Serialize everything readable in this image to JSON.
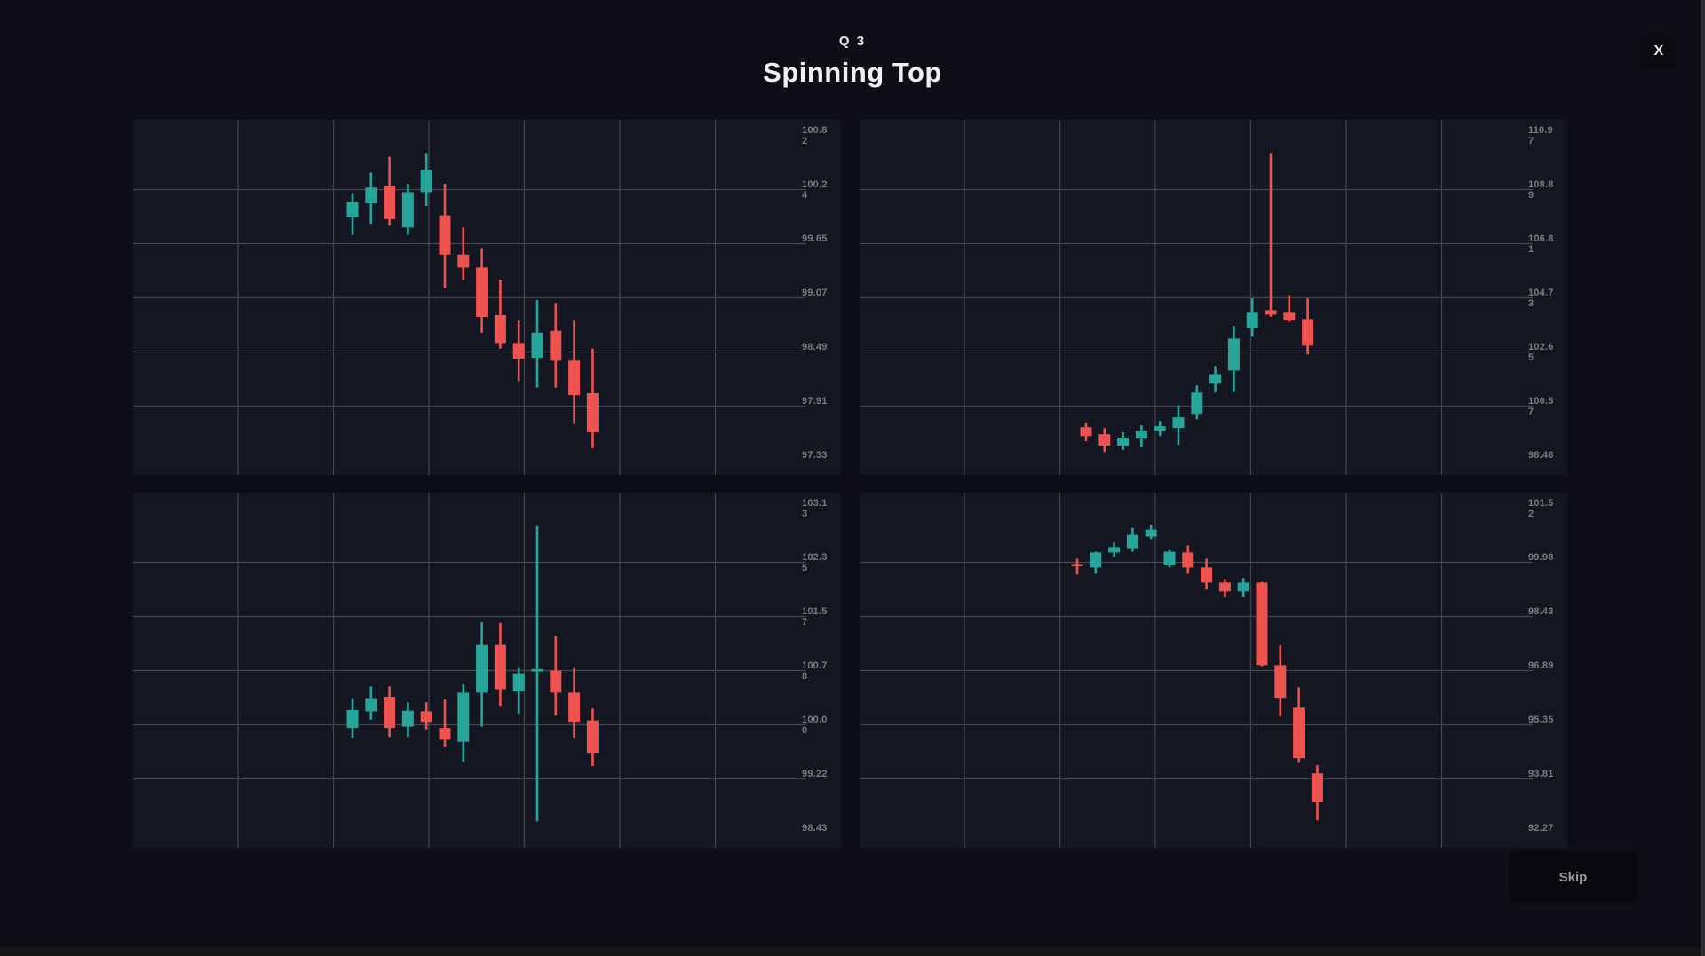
{
  "header": {
    "question_label": "Q 3",
    "title": "Spinning Top",
    "close_label": "X"
  },
  "footer": {
    "skip_label": "Skip"
  },
  "theme": {
    "page_bg": "#0d0e16",
    "panel_bg": "#141722",
    "grid_color": "#42464f",
    "axis_text_color": "#787b86",
    "up_color": "#26a69a",
    "down_color": "#ef5350",
    "title_color": "#eef0f4"
  },
  "chart_data": [
    {
      "type": "candlestick",
      "name": "chart-top-left",
      "axis_labels": [
        "100.82",
        "100.24",
        "99.65",
        "99.07",
        "98.49",
        "97.91",
        "97.33"
      ],
      "axis_values": [
        100.82,
        100.24,
        99.65,
        99.07,
        98.49,
        97.91,
        97.33
      ],
      "grid": true,
      "legend_position": "none",
      "candles": [
        {
          "o": 99.94,
          "h": 100.2,
          "l": 99.75,
          "c": 100.1
        },
        {
          "o": 100.09,
          "h": 100.42,
          "l": 99.87,
          "c": 100.26
        },
        {
          "o": 100.28,
          "h": 100.59,
          "l": 99.85,
          "c": 99.92
        },
        {
          "o": 99.83,
          "h": 100.3,
          "l": 99.75,
          "c": 100.21
        },
        {
          "o": 100.21,
          "h": 100.63,
          "l": 100.06,
          "c": 100.45
        },
        {
          "o": 99.96,
          "h": 100.3,
          "l": 99.18,
          "c": 99.54
        },
        {
          "o": 99.54,
          "h": 99.83,
          "l": 99.27,
          "c": 99.4
        },
        {
          "o": 99.4,
          "h": 99.61,
          "l": 98.7,
          "c": 98.87
        },
        {
          "o": 98.89,
          "h": 99.27,
          "l": 98.53,
          "c": 98.59
        },
        {
          "o": 98.59,
          "h": 98.83,
          "l": 98.18,
          "c": 98.42
        },
        {
          "o": 98.43,
          "h": 99.05,
          "l": 98.11,
          "c": 98.7
        },
        {
          "o": 98.72,
          "h": 99.02,
          "l": 98.11,
          "c": 98.4
        },
        {
          "o": 98.4,
          "h": 98.83,
          "l": 97.72,
          "c": 98.03
        },
        {
          "o": 98.05,
          "h": 98.53,
          "l": 97.46,
          "c": 97.63
        }
      ]
    },
    {
      "type": "candlestick",
      "name": "chart-top-right",
      "axis_labels": [
        "110.97",
        "108.89",
        "106.81",
        "104.73",
        "102.65",
        "100.57",
        "98.48"
      ],
      "axis_values": [
        110.97,
        108.89,
        106.81,
        104.73,
        102.65,
        100.57,
        98.48
      ],
      "grid": true,
      "legend_position": "none",
      "candles": [
        {
          "o": 99.75,
          "h": 99.92,
          "l": 99.21,
          "c": 99.41
        },
        {
          "o": 99.48,
          "h": 99.72,
          "l": 98.8,
          "c": 99.04
        },
        {
          "o": 99.04,
          "h": 99.55,
          "l": 98.87,
          "c": 99.35
        },
        {
          "o": 99.31,
          "h": 99.82,
          "l": 98.97,
          "c": 99.62
        },
        {
          "o": 99.62,
          "h": 99.99,
          "l": 99.41,
          "c": 99.79
        },
        {
          "o": 99.72,
          "h": 100.6,
          "l": 99.07,
          "c": 100.13
        },
        {
          "o": 100.26,
          "h": 101.35,
          "l": 100.06,
          "c": 101.08
        },
        {
          "o": 101.42,
          "h": 102.1,
          "l": 101.08,
          "c": 101.79
        },
        {
          "o": 101.93,
          "h": 103.64,
          "l": 101.11,
          "c": 103.16
        },
        {
          "o": 103.57,
          "h": 104.7,
          "l": 103.23,
          "c": 104.15
        },
        {
          "o": 104.25,
          "h": 110.29,
          "l": 104.0,
          "c": 104.08
        },
        {
          "o": 104.15,
          "h": 104.83,
          "l": 103.8,
          "c": 103.85
        },
        {
          "o": 103.91,
          "h": 104.7,
          "l": 102.55,
          "c": 102.89
        }
      ]
    },
    {
      "type": "candlestick",
      "name": "chart-bottom-left",
      "axis_labels": [
        "103.13",
        "102.35",
        "101.57",
        "100.78",
        "100.00",
        "99.22",
        "98.43"
      ],
      "axis_values": [
        103.13,
        102.35,
        101.57,
        100.78,
        100.0,
        99.22,
        98.43
      ],
      "grid": true,
      "legend_position": "none",
      "candles": [
        {
          "o": 99.95,
          "h": 100.38,
          "l": 99.81,
          "c": 100.21
        },
        {
          "o": 100.19,
          "h": 100.55,
          "l": 100.07,
          "c": 100.38
        },
        {
          "o": 100.4,
          "h": 100.55,
          "l": 99.82,
          "c": 99.95
        },
        {
          "o": 99.97,
          "h": 100.32,
          "l": 99.82,
          "c": 100.2
        },
        {
          "o": 100.19,
          "h": 100.32,
          "l": 99.93,
          "c": 100.04
        },
        {
          "o": 99.95,
          "h": 100.36,
          "l": 99.68,
          "c": 99.78
        },
        {
          "o": 99.75,
          "h": 100.58,
          "l": 99.46,
          "c": 100.46
        },
        {
          "o": 100.46,
          "h": 101.48,
          "l": 99.97,
          "c": 101.15
        },
        {
          "o": 101.15,
          "h": 101.47,
          "l": 100.27,
          "c": 100.51
        },
        {
          "o": 100.48,
          "h": 100.83,
          "l": 100.16,
          "c": 100.74
        },
        {
          "o": 100.77,
          "h": 102.87,
          "l": 98.6,
          "c": 100.8
        },
        {
          "o": 100.78,
          "h": 101.28,
          "l": 100.13,
          "c": 100.46
        },
        {
          "o": 100.46,
          "h": 100.83,
          "l": 99.81,
          "c": 100.04
        },
        {
          "o": 100.06,
          "h": 100.23,
          "l": 99.4,
          "c": 99.59
        }
      ]
    },
    {
      "type": "candlestick",
      "name": "chart-bottom-right",
      "axis_labels": [
        "101.52",
        "99.98",
        "98.43",
        "96.89",
        "95.35",
        "93.81",
        "92.27"
      ],
      "axis_values": [
        101.52,
        99.98,
        98.43,
        96.89,
        95.35,
        93.81,
        92.27
      ],
      "grid": true,
      "legend_position": "none",
      "candles": [
        {
          "o": 99.93,
          "h": 100.08,
          "l": 99.63,
          "c": 99.88
        },
        {
          "o": 99.83,
          "h": 100.28,
          "l": 99.65,
          "c": 100.26
        },
        {
          "o": 100.26,
          "h": 100.54,
          "l": 100.13,
          "c": 100.41
        },
        {
          "o": 100.38,
          "h": 100.96,
          "l": 100.28,
          "c": 100.76
        },
        {
          "o": 100.71,
          "h": 101.04,
          "l": 100.64,
          "c": 100.91
        },
        {
          "o": 99.9,
          "h": 100.33,
          "l": 99.83,
          "c": 100.28
        },
        {
          "o": 100.26,
          "h": 100.46,
          "l": 99.65,
          "c": 99.83
        },
        {
          "o": 99.83,
          "h": 100.08,
          "l": 99.2,
          "c": 99.4
        },
        {
          "o": 99.4,
          "h": 99.5,
          "l": 99.0,
          "c": 99.15
        },
        {
          "o": 99.15,
          "h": 99.53,
          "l": 99.0,
          "c": 99.4
        },
        {
          "o": 99.4,
          "h": 99.42,
          "l": 97.02,
          "c": 97.05
        },
        {
          "o": 97.05,
          "h": 97.61,
          "l": 95.59,
          "c": 96.12
        },
        {
          "o": 95.84,
          "h": 96.42,
          "l": 94.27,
          "c": 94.4
        },
        {
          "o": 93.97,
          "h": 94.2,
          "l": 92.63,
          "c": 93.14
        }
      ]
    }
  ]
}
